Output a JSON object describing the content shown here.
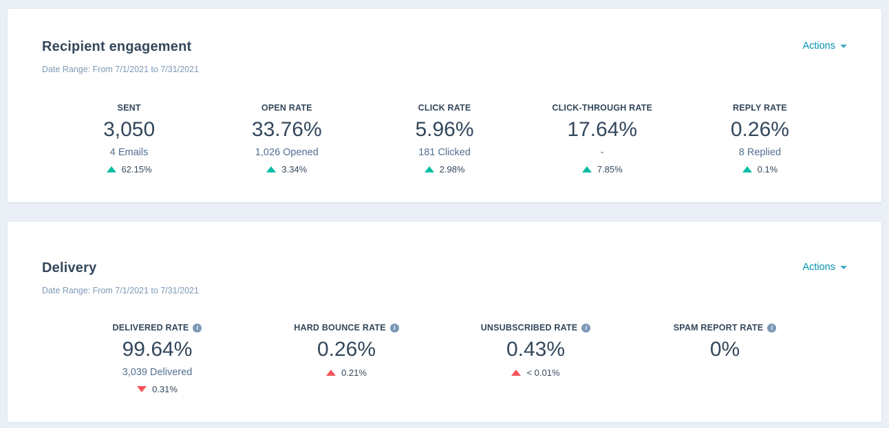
{
  "colors": {
    "page_background": "#eaf0f6",
    "card_background": "#ffffff",
    "heading_text": "#33475b",
    "muted_text": "#7c98b6",
    "sub_text": "#516f90",
    "link": "#0091ae",
    "trend_up": "#00bda5",
    "trend_down": "#f2545b",
    "info_icon": "#7c98b6"
  },
  "cards": [
    {
      "title": "Recipient engagement",
      "date_range": "Date Range: From 7/1/2021 to 7/31/2021",
      "actions_label": "Actions",
      "metrics": [
        {
          "label": "SENT",
          "value": "3,050",
          "sub": "4 Emails",
          "delta": "62.15%",
          "delta_dir": "up",
          "delta_color": "teal"
        },
        {
          "label": "OPEN RATE",
          "value": "33.76%",
          "sub": "1,026 Opened",
          "delta": "3.34%",
          "delta_dir": "up",
          "delta_color": "teal"
        },
        {
          "label": "CLICK RATE",
          "value": "5.96%",
          "sub": "181 Clicked",
          "delta": "2.98%",
          "delta_dir": "up",
          "delta_color": "teal"
        },
        {
          "label": "CLICK-THROUGH RATE",
          "value": "17.64%",
          "sub": "-",
          "delta": "7.85%",
          "delta_dir": "up",
          "delta_color": "teal"
        },
        {
          "label": "REPLY RATE",
          "value": "0.26%",
          "sub": "8 Replied",
          "delta": "0.1%",
          "delta_dir": "up",
          "delta_color": "teal"
        }
      ]
    },
    {
      "title": "Delivery",
      "date_range": "Date Range: From 7/1/2021 to 7/31/2021",
      "actions_label": "Actions",
      "metrics": [
        {
          "label": "DELIVERED RATE",
          "has_info": true,
          "value": "99.64%",
          "sub": "3,039 Delivered",
          "delta": "0.31%",
          "delta_dir": "down",
          "delta_color": "red"
        },
        {
          "label": "HARD BOUNCE RATE",
          "has_info": true,
          "value": "0.26%",
          "sub": "",
          "delta": "0.21%",
          "delta_dir": "up",
          "delta_color": "red"
        },
        {
          "label": "UNSUBSCRIBED RATE",
          "has_info": true,
          "value": "0.43%",
          "sub": "",
          "delta": "< 0.01%",
          "delta_dir": "up",
          "delta_color": "red"
        },
        {
          "label": "SPAM REPORT RATE",
          "has_info": true,
          "value": "0%",
          "sub": "",
          "delta": "",
          "delta_dir": "",
          "delta_color": ""
        }
      ]
    }
  ]
}
